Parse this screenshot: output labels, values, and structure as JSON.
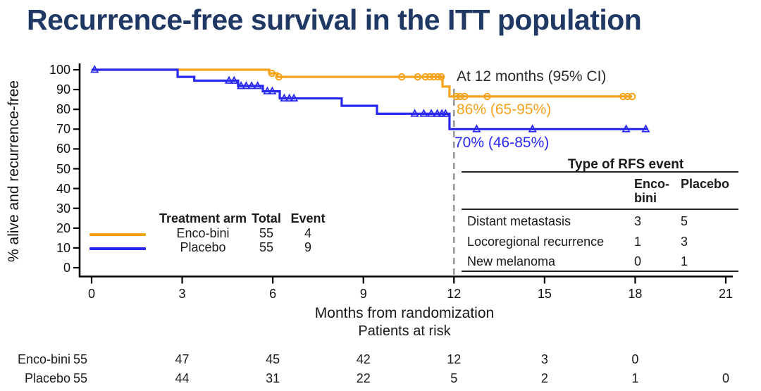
{
  "title": "Recurrence-free survival in the ITT population",
  "colors": {
    "title_navy": "#203864",
    "enco_orange": "#F5A31D",
    "placebo_blue": "#2828EE",
    "reference_gray": "#999999",
    "axis_black": "#000000"
  },
  "chart_data": {
    "type": "line",
    "subtype": "kaplan-meier-step",
    "xlabel": "Months from randomization",
    "ylabel": "% alive and recurrence-free",
    "xlim": [
      0,
      21
    ],
    "ylim": [
      0,
      100
    ],
    "xticks": [
      0,
      3,
      6,
      9,
      12,
      15,
      18,
      21
    ],
    "yticks": [
      0,
      10,
      20,
      30,
      40,
      50,
      60,
      70,
      80,
      90,
      100
    ],
    "grid": false,
    "reference_line_x": 12,
    "series": [
      {
        "name": "Enco-bini",
        "color": "#F5A31D",
        "marker": "circle",
        "start": [
          0,
          100
        ],
        "events": [
          [
            5.88,
            98.2
          ],
          [
            6.15,
            96.4
          ],
          [
            11.62,
            91.5
          ],
          [
            11.85,
            86.5
          ]
        ],
        "end_t": 17.9,
        "censor_marks": [
          [
            5.97,
            98.2
          ],
          [
            6.2,
            96.4
          ],
          [
            10.27,
            96.4
          ],
          [
            10.8,
            96.4
          ],
          [
            11.05,
            96.4
          ],
          [
            11.2,
            96.4
          ],
          [
            11.33,
            96.4
          ],
          [
            11.47,
            96.4
          ],
          [
            11.58,
            96.4
          ],
          [
            12.08,
            86.5
          ],
          [
            12.2,
            86.5
          ],
          [
            12.35,
            86.5
          ],
          [
            13.1,
            86.5
          ],
          [
            17.6,
            86.5
          ],
          [
            17.75,
            86.5
          ],
          [
            17.9,
            86.5
          ]
        ]
      },
      {
        "name": "Placebo",
        "color": "#2828EE",
        "marker": "triangle",
        "start": [
          0,
          100
        ],
        "events": [
          [
            2.85,
            96.4
          ],
          [
            3.4,
            94.5
          ],
          [
            4.85,
            91.8
          ],
          [
            5.67,
            89.1
          ],
          [
            6.23,
            85.5
          ],
          [
            8.28,
            81.8
          ],
          [
            9.45,
            77.8
          ],
          [
            11.85,
            70
          ]
        ],
        "end_t": 18.4,
        "censor_marks": [
          [
            0.1,
            100
          ],
          [
            4.55,
            94.5
          ],
          [
            4.72,
            94.5
          ],
          [
            4.95,
            91.8
          ],
          [
            5.12,
            91.8
          ],
          [
            5.3,
            91.8
          ],
          [
            5.5,
            91.8
          ],
          [
            5.82,
            89.1
          ],
          [
            5.98,
            89.1
          ],
          [
            6.38,
            85.5
          ],
          [
            6.55,
            85.5
          ],
          [
            6.7,
            85.5
          ],
          [
            10.7,
            77.8
          ],
          [
            11.0,
            77.8
          ],
          [
            11.25,
            77.8
          ],
          [
            11.45,
            77.8
          ],
          [
            11.6,
            77.8
          ],
          [
            11.72,
            77.8
          ],
          [
            12.75,
            70
          ],
          [
            14.6,
            70
          ],
          [
            17.7,
            70
          ],
          [
            18.35,
            70
          ]
        ]
      }
    ]
  },
  "annotation": {
    "heading": "At 12 months (95% CI)",
    "enco_estimate": "86% (65-95%)",
    "placebo_estimate": "70% (46-85%)"
  },
  "legend": {
    "headers": {
      "arm": "Treatment arm",
      "total": "Total",
      "event": "Event"
    },
    "rows": [
      {
        "arm": "Enco-bini",
        "total": "55",
        "event": "4"
      },
      {
        "arm": "Placebo",
        "total": "55",
        "event": "9"
      }
    ]
  },
  "rfs_table": {
    "title": "Type of RFS event",
    "col_headers": {
      "enco": "Enco-bini",
      "placebo": "Placebo"
    },
    "rows": [
      {
        "label": "Distant metastasis",
        "enco": "3",
        "placebo": "5"
      },
      {
        "label": "Locoregional recurrence",
        "enco": "1",
        "placebo": "3"
      },
      {
        "label": "New melanoma",
        "enco": "0",
        "placebo": "1"
      }
    ]
  },
  "at_risk": {
    "title": "Patients at risk",
    "rows": [
      {
        "label": "Enco-bini",
        "values": [
          "55",
          "47",
          "45",
          "42",
          "12",
          "3",
          "0"
        ]
      },
      {
        "label": "Placebo",
        "values": [
          "55",
          "44",
          "31",
          "22",
          "5",
          "2",
          "1",
          "0"
        ]
      }
    ]
  }
}
